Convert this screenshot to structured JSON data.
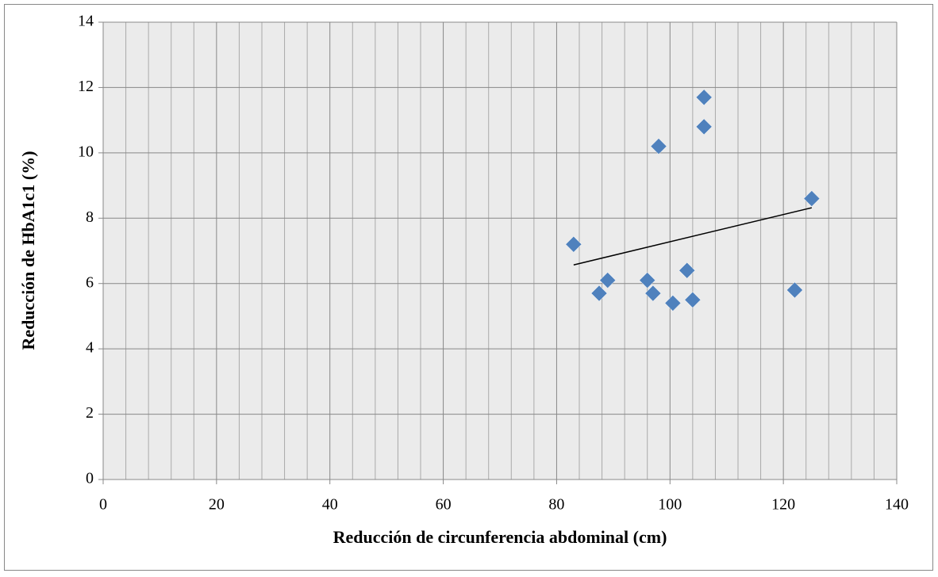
{
  "chart_data": {
    "type": "scatter",
    "x_label": "Reducción de circunferencia abdominal (cm)",
    "y_label": "Reducción de HbA1c1 (%)",
    "series": [
      {
        "color": "#4f81bd",
        "x": [
          83,
          87.5,
          89,
          96,
          97,
          98,
          100.5,
          103,
          104,
          106,
          106,
          122,
          125
        ],
        "values": [
          7.2,
          5.7,
          6.1,
          6.1,
          5.7,
          10.2,
          5.4,
          6.4,
          5.5,
          11.7,
          10.8,
          5.8,
          8.6
        ]
      }
    ],
    "trendline": {
      "color": "#000000",
      "x": [
        83,
        125
      ],
      "values": [
        6.57,
        8.32
      ]
    },
    "xlim": [
      0,
      140
    ],
    "xticks": [
      0,
      20,
      40,
      60,
      80,
      100,
      120,
      140
    ],
    "ylim": [
      0,
      14
    ],
    "yticks": [
      0,
      2,
      4,
      6,
      8,
      10,
      12,
      14
    ],
    "grid": true
  }
}
